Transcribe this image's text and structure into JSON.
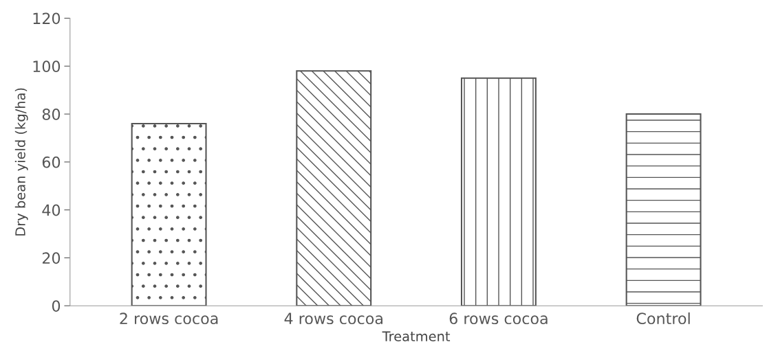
{
  "chart_data": {
    "type": "bar",
    "xlabel": "Treatment",
    "ylabel": "Dry bean yield (kg/ha)",
    "categories": [
      "2 rows cocoa",
      "4 rows cocoa",
      "6 rows cocoa",
      "Control"
    ],
    "values": [
      76,
      98,
      95,
      80
    ],
    "colors": [
      "#555555",
      "#555555",
      "#555555",
      "#555555"
    ],
    "ylim": [
      0,
      120
    ],
    "yticks": [
      0,
      20,
      40,
      60,
      80,
      100,
      120
    ],
    "grid": false,
    "legend": false
  }
}
